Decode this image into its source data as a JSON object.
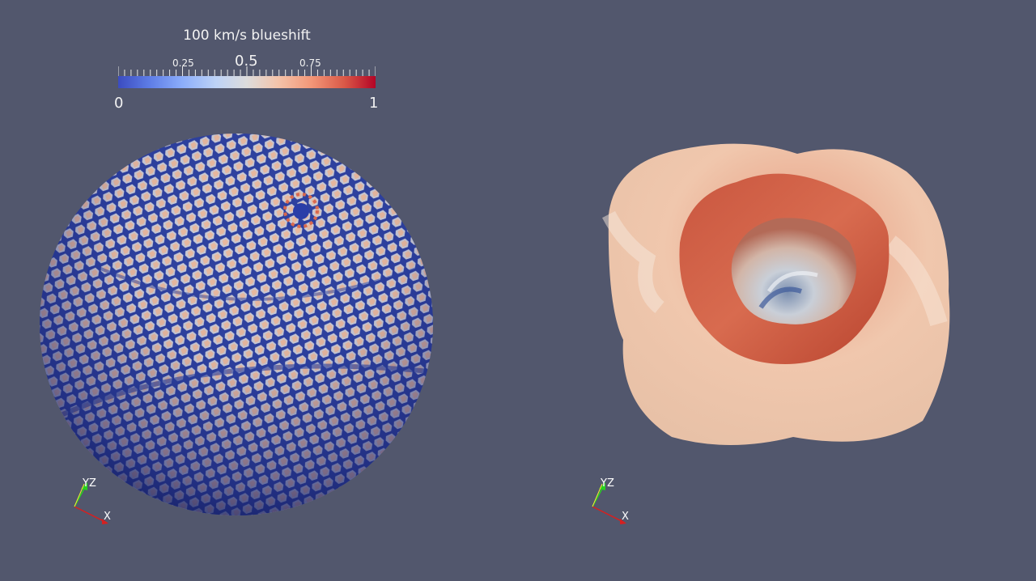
{
  "colorbar": {
    "title": "100 km/s blueshift",
    "min_label": "0",
    "max_label": "1",
    "tick_labels": {
      "q1": "0.25",
      "mid": "0.5",
      "q3": "0.75"
    },
    "colormap": "cool-to-warm",
    "colors": [
      "#3b4cc0",
      "#dddcdc",
      "#b40426"
    ]
  },
  "left_view": {
    "object": "sphere-surface",
    "axes": {
      "x": "X",
      "yz": "YZ"
    }
  },
  "right_view": {
    "object": "surface-with-cavity",
    "axes": {
      "x": "X",
      "yz": "YZ"
    }
  },
  "background": "#52576d"
}
